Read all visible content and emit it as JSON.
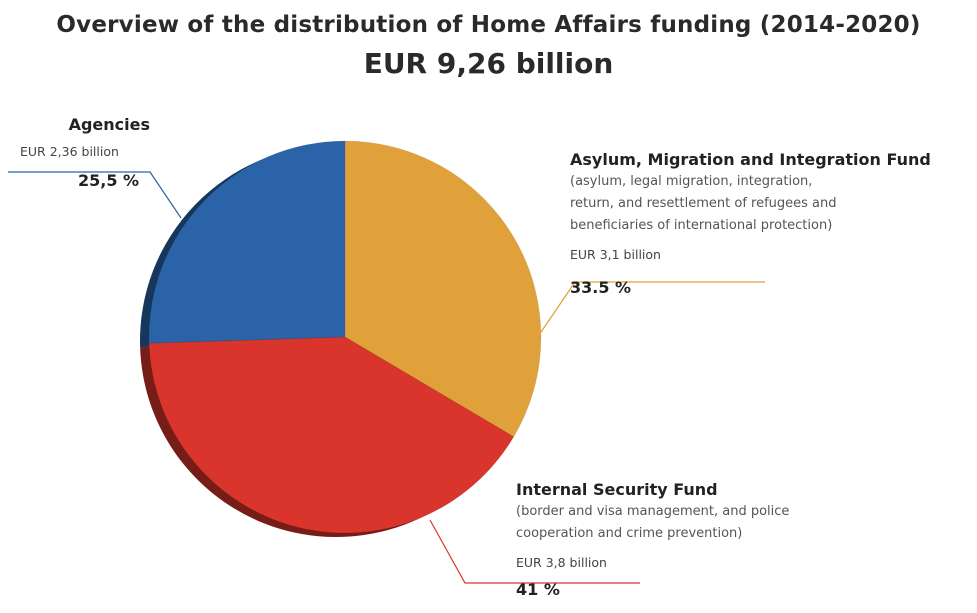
{
  "header": {
    "title": "Overview of the distribution of Home Affairs funding (2014-2020)",
    "total": "EUR  9,26 billion"
  },
  "colors": {
    "agencies": "#2a63a8",
    "asylum": "#e0a03a",
    "security": "#d9352c"
  },
  "chart_data": {
    "type": "pie",
    "title": "Overview of the distribution of Home Affairs funding (2014-2020)",
    "subtitle": "EUR  9,26 billion",
    "slices": [
      {
        "name": "Asylum, Migration and Integration Fund",
        "description": [
          "(asylum, legal migration, integration,",
          "return, and resettlement of refugees and",
          "beneficiaries of international protection)"
        ],
        "amount_label": "EUR 3,1 billion",
        "percent_label": "33.5 %",
        "value": 33.5,
        "color": "#e0a03a"
      },
      {
        "name": "Internal Security Fund",
        "description": [
          "(border and visa management, and police",
          "cooperation and crime prevention)"
        ],
        "amount_label": "EUR 3,8 billion",
        "percent_label": "41 %",
        "value": 41,
        "color": "#d9352c"
      },
      {
        "name": "Agencies",
        "description": [],
        "amount_label": "EUR 2,36 billion",
        "percent_label": "25,5 %",
        "value": 25.5,
        "color": "#2a63a8"
      }
    ]
  }
}
